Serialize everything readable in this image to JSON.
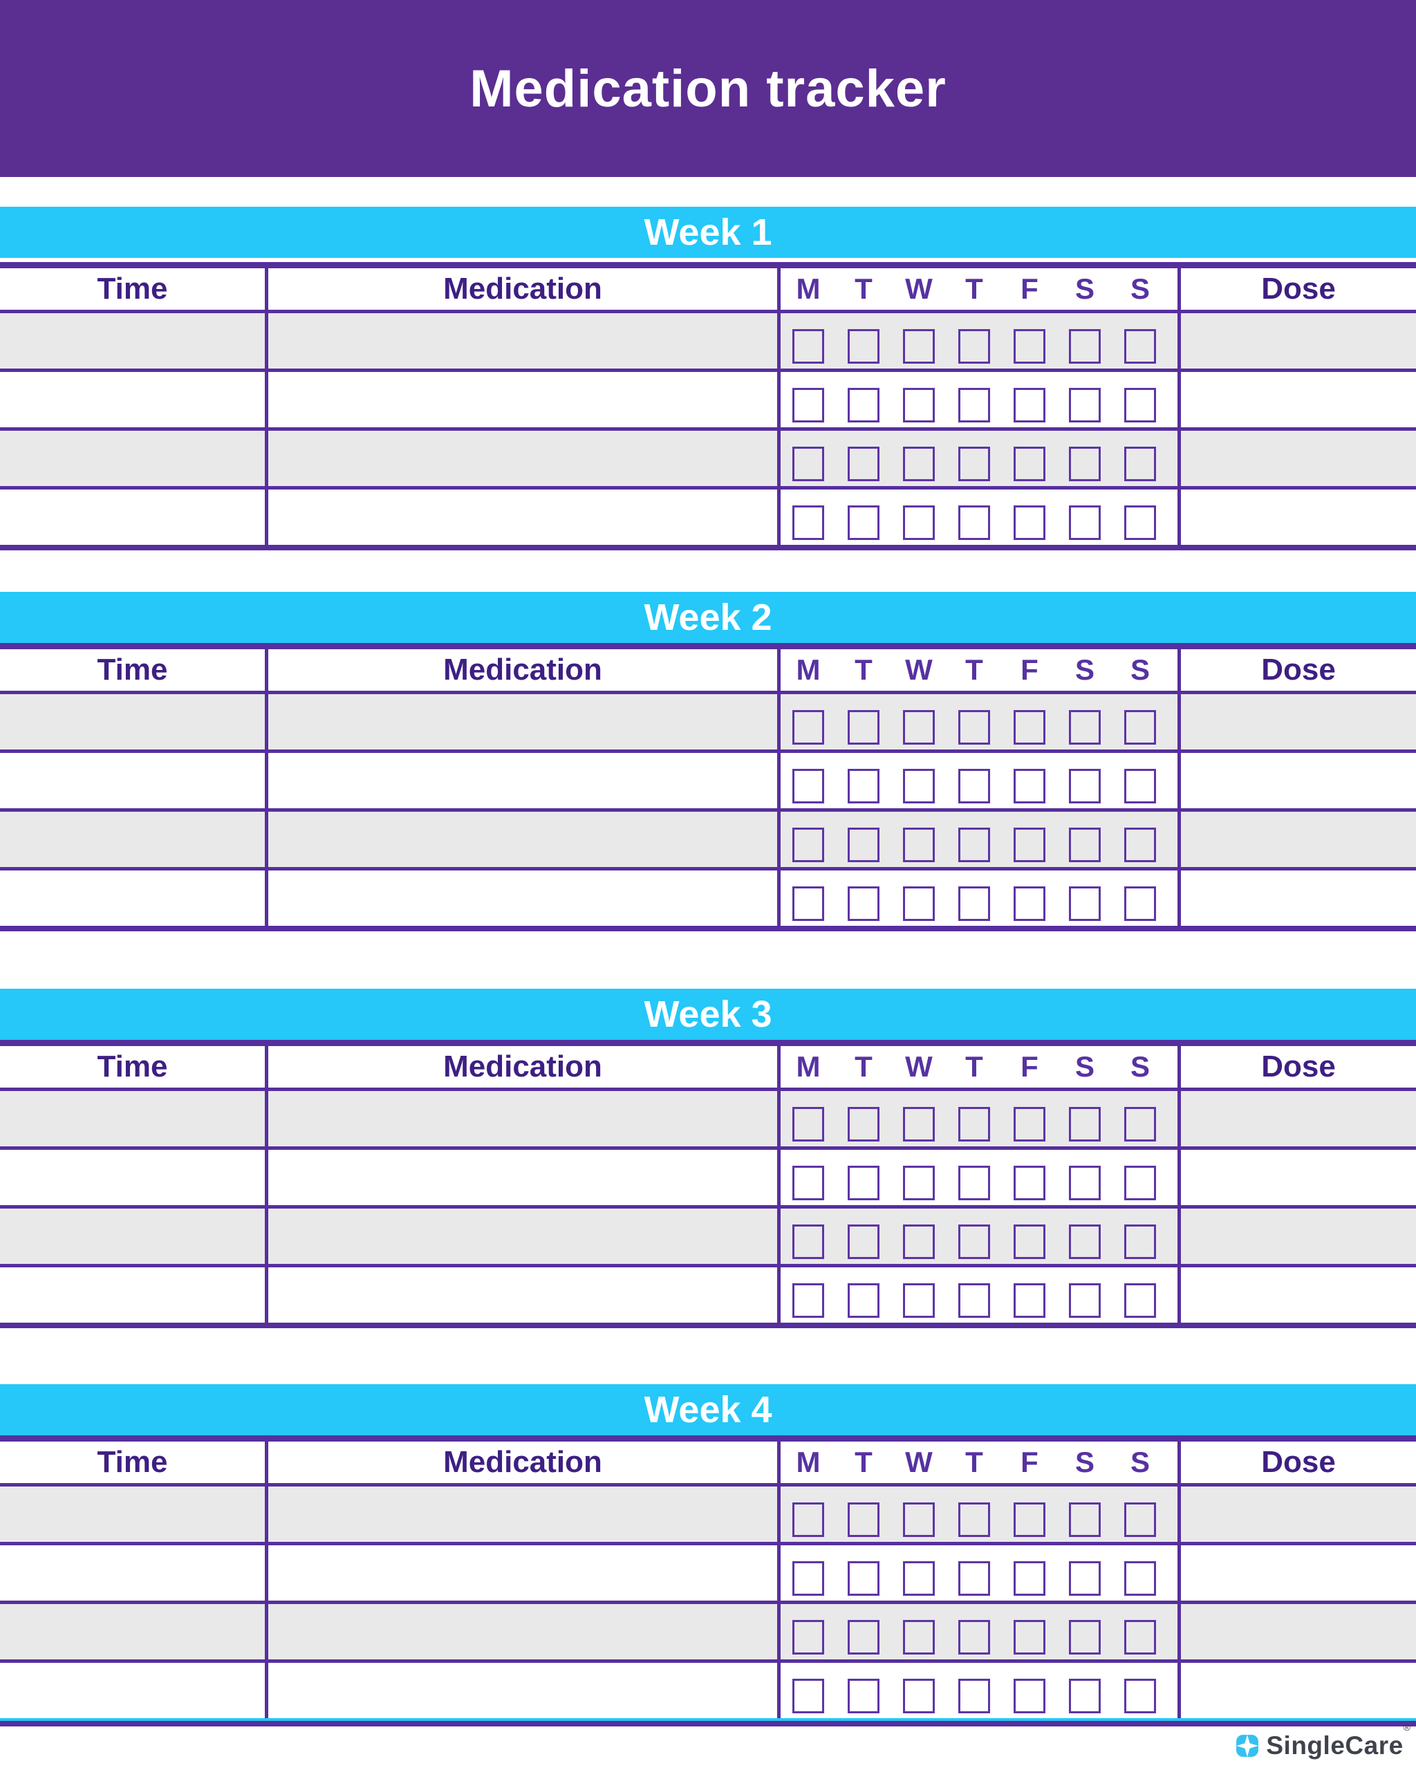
{
  "page": {
    "title": "Medication tracker"
  },
  "table": {
    "columns": {
      "time": "Time",
      "medication": "Medication",
      "dose": "Dose"
    },
    "days": [
      "M",
      "T",
      "W",
      "T",
      "F",
      "S",
      "S"
    ],
    "rows_per_week": 4,
    "checkboxes_checked": 0
  },
  "weeks": [
    {
      "label": "Week 1"
    },
    {
      "label": "Week 2"
    },
    {
      "label": "Week 3"
    },
    {
      "label": "Week 4"
    }
  ],
  "footer": {
    "brand": "SingleCare",
    "registered_mark": "®"
  },
  "colors": {
    "banner": "#5b2e92",
    "cyan": "#25c8f8",
    "line": "#562f9e",
    "header_text": "#3e1f83",
    "day_text": "#5732a1",
    "gray": "#e9e9e9",
    "checkbox": "#5d35a6",
    "logo_cyan": "#35c1ef",
    "logo_text": "#3f434c"
  }
}
